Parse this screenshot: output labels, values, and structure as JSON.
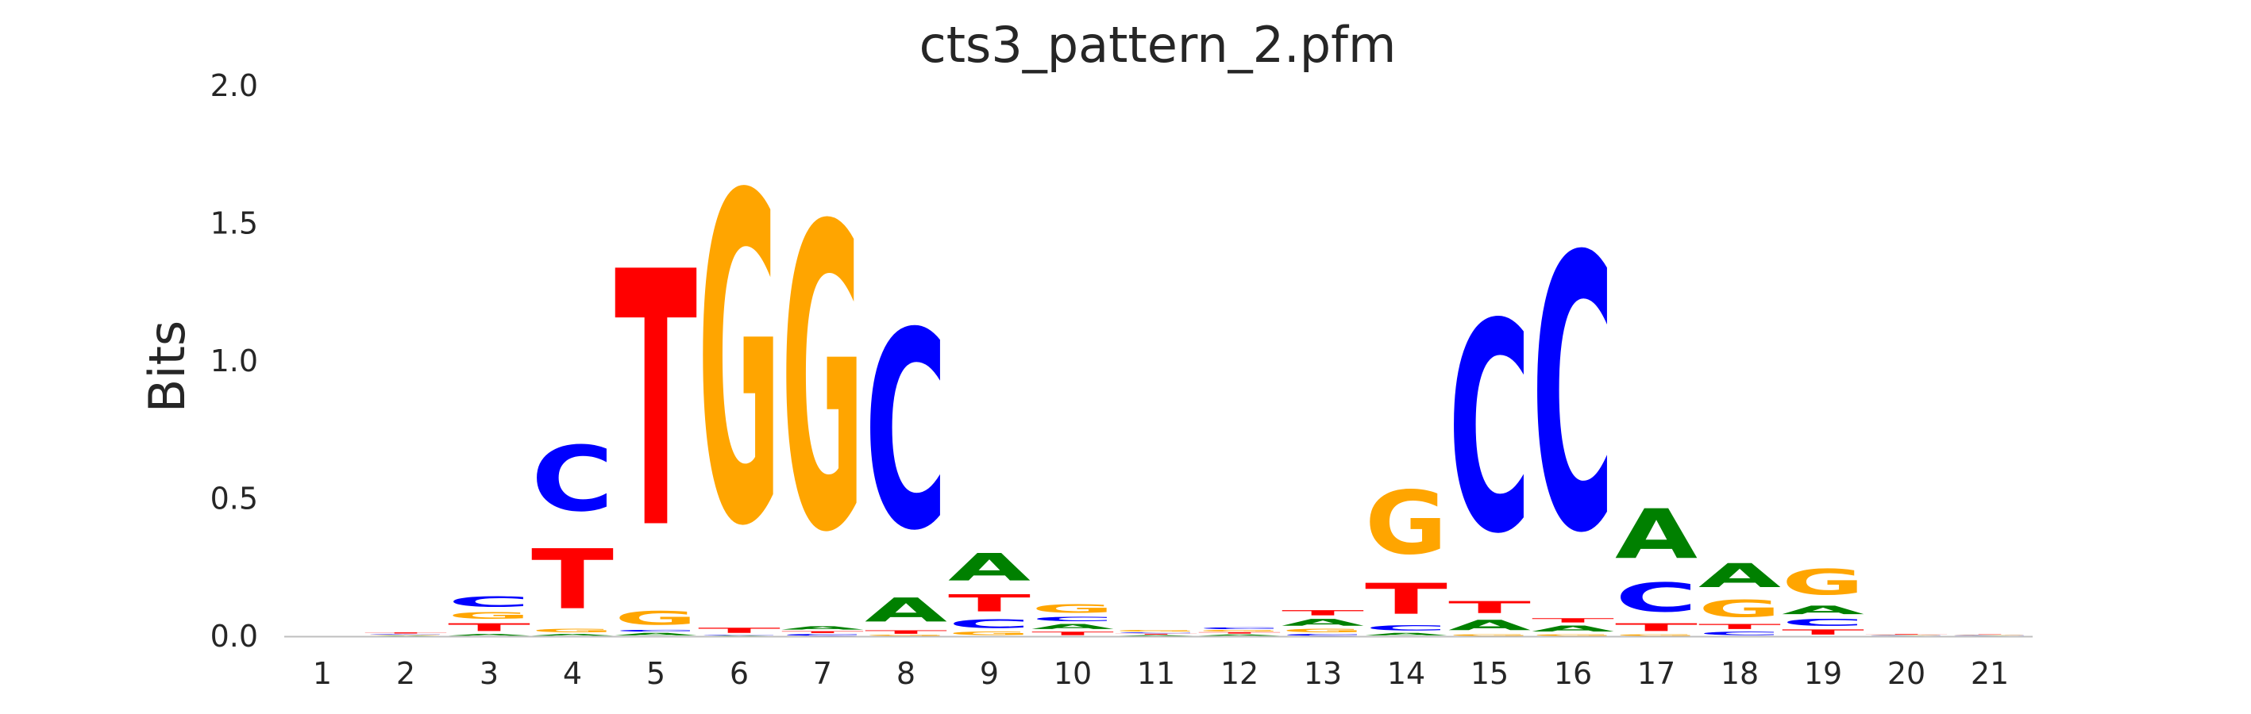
{
  "chart_data": {
    "type": "sequence-logo",
    "title": "cts3_pattern_2.pfm",
    "ylabel": "Bits",
    "xlabel": "",
    "ylim": [
      0,
      2.0
    ],
    "yticks": [
      "0.0",
      "0.5",
      "1.0",
      "1.5",
      "2.0"
    ],
    "ytick_values": [
      0,
      0.5,
      1.0,
      1.5,
      2.0
    ],
    "grid": false,
    "colors": {
      "A": "#008000",
      "C": "#0000ff",
      "G": "#ffa500",
      "T": "#ff0000"
    },
    "positions": [
      {
        "label": "1",
        "stack": []
      },
      {
        "label": "2",
        "stack": [
          [
            "A",
            0.003
          ],
          [
            "G",
            0.003
          ],
          [
            "C",
            0.003
          ],
          [
            "T",
            0.006
          ]
        ]
      },
      {
        "label": "3",
        "stack": [
          [
            "A",
            0.01
          ],
          [
            "T",
            0.045
          ],
          [
            "G",
            0.04
          ],
          [
            "C",
            0.06
          ]
        ]
      },
      {
        "label": "4",
        "stack": [
          [
            "A",
            0.01
          ],
          [
            "G",
            0.02
          ],
          [
            "T",
            0.35
          ],
          [
            "C",
            0.38
          ]
        ]
      },
      {
        "label": "5",
        "stack": [
          [
            "A",
            0.015
          ],
          [
            "C",
            0.01
          ],
          [
            "G",
            0.08
          ],
          [
            "T",
            1.49
          ]
        ]
      },
      {
        "label": "6",
        "stack": [
          [
            "A",
            0.003
          ],
          [
            "C",
            0.003
          ],
          [
            "T",
            0.03
          ],
          [
            "G",
            1.91
          ]
        ]
      },
      {
        "label": "7",
        "stack": [
          [
            "C",
            0.01
          ],
          [
            "T",
            0.01
          ],
          [
            "A",
            0.02
          ],
          [
            "G",
            1.77
          ]
        ]
      },
      {
        "label": "8",
        "stack": [
          [
            "G",
            0.005
          ],
          [
            "T",
            0.02
          ],
          [
            "A",
            0.14
          ],
          [
            "C",
            1.15
          ]
        ]
      },
      {
        "label": "9",
        "stack": [
          [
            "G",
            0.02
          ],
          [
            "C",
            0.05
          ],
          [
            "T",
            0.1
          ],
          [
            "A",
            0.16
          ]
        ]
      },
      {
        "label": "10",
        "stack": [
          [
            "T",
            0.02
          ],
          [
            "A",
            0.03
          ],
          [
            "C",
            0.025
          ],
          [
            "G",
            0.05
          ]
        ]
      },
      {
        "label": "11",
        "stack": [
          [
            "A",
            0.005
          ],
          [
            "T",
            0.005
          ],
          [
            "C",
            0.005
          ],
          [
            "G",
            0.01
          ]
        ]
      },
      {
        "label": "12",
        "stack": [
          [
            "A",
            0.008
          ],
          [
            "T",
            0.008
          ],
          [
            "G",
            0.008
          ],
          [
            "C",
            0.01
          ]
        ]
      },
      {
        "label": "13",
        "stack": [
          [
            "C",
            0.01
          ],
          [
            "G",
            0.02
          ],
          [
            "A",
            0.04
          ],
          [
            "T",
            0.03
          ]
        ]
      },
      {
        "label": "14",
        "stack": [
          [
            "A",
            0.015
          ],
          [
            "C",
            0.03
          ],
          [
            "T",
            0.18
          ],
          [
            "G",
            0.37
          ]
        ]
      },
      {
        "label": "15",
        "stack": [
          [
            "G",
            0.01
          ],
          [
            "A",
            0.06
          ],
          [
            "T",
            0.07
          ],
          [
            "C",
            1.22
          ]
        ]
      },
      {
        "label": "16",
        "stack": [
          [
            "G",
            0.01
          ],
          [
            "A",
            0.035
          ],
          [
            "T",
            0.025
          ],
          [
            "C",
            1.6
          ]
        ]
      },
      {
        "label": "17",
        "stack": [
          [
            "G",
            0.01
          ],
          [
            "T",
            0.045
          ],
          [
            "C",
            0.17
          ],
          [
            "A",
            0.29
          ]
        ]
      },
      {
        "label": "18",
        "stack": [
          [
            "C",
            0.02
          ],
          [
            "T",
            0.03
          ],
          [
            "G",
            0.1
          ],
          [
            "A",
            0.14
          ]
        ]
      },
      {
        "label": "19",
        "stack": [
          [
            "T",
            0.03
          ],
          [
            "C",
            0.04
          ],
          [
            "A",
            0.05
          ],
          [
            "G",
            0.15
          ]
        ]
      },
      {
        "label": "20",
        "stack": [
          [
            "A",
            0.002
          ],
          [
            "C",
            0.002
          ],
          [
            "G",
            0.002
          ],
          [
            "T",
            0.003
          ]
        ]
      },
      {
        "label": "21",
        "stack": [
          [
            "A",
            0.002
          ],
          [
            "C",
            0.002
          ],
          [
            "G",
            0.002
          ],
          [
            "T",
            0.002
          ]
        ]
      }
    ]
  }
}
